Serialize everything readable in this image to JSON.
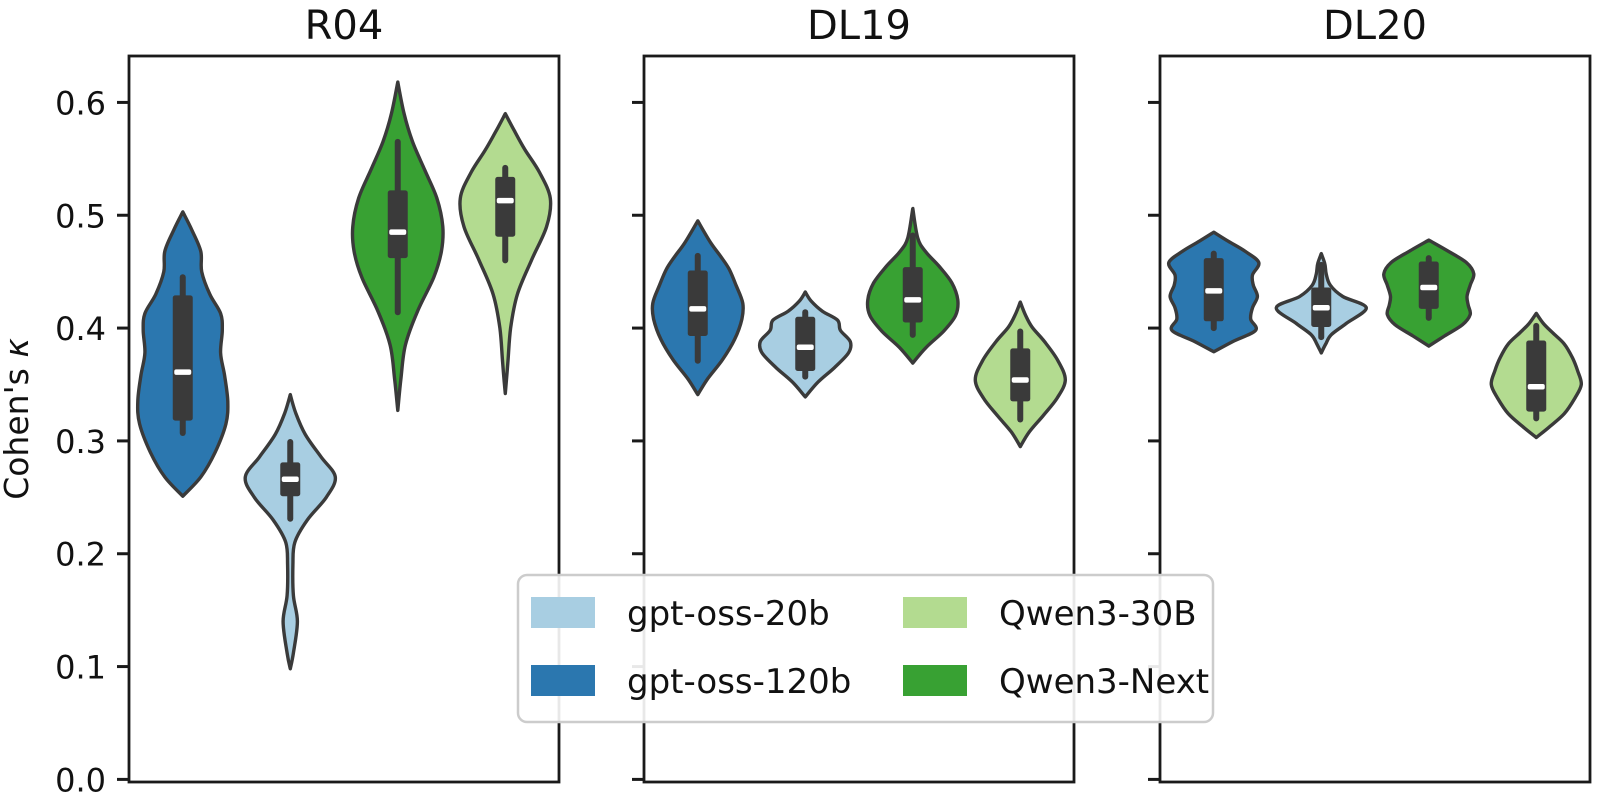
{
  "figure": {
    "background": "#ffffff",
    "ylabel_text": "Cohen's",
    "ylabel_symbol": "κ"
  },
  "chart_data": {
    "type": "violin",
    "title": "",
    "xlabel": "",
    "ylabel": "Cohen's κ",
    "ylim": [
      0.0,
      0.643
    ],
    "yticks": [
      0.0,
      0.1,
      0.2,
      0.3,
      0.4,
      0.5,
      0.6
    ],
    "ytick_labels": [
      "0.0",
      "0.1",
      "0.2",
      "0.3",
      "0.4",
      "0.5",
      "0.6"
    ],
    "grid": false,
    "legend_position": "lower-center",
    "colors": {
      "violin_edge": "#3a3a3a",
      "inner_box": "#3a3a3a",
      "median_marker": "#ffffff",
      "spine": "#1a1a1a",
      "legend_border": "#cccccc"
    },
    "legend": {
      "entries": [
        {
          "label": "gpt-oss-20b",
          "color": "#a8cee2"
        },
        {
          "label": "gpt-oss-120b",
          "color": "#2b77af"
        },
        {
          "label": "Qwen3-30B",
          "color": "#b3db90"
        },
        {
          "label": "Qwen3-Next",
          "color": "#38a133"
        }
      ]
    },
    "panels": [
      {
        "title": "R04",
        "violins": [
          {
            "series": "gpt-oss-120b",
            "color": "#2b77af",
            "stats": {
              "min": 0.251,
              "whisker_low": 0.307,
              "q1": 0.318,
              "median": 0.361,
              "q3": 0.429,
              "whisker_high": 0.445,
              "max": 0.503
            },
            "profile": [
              [
                0.251,
                0
              ],
              [
                0.268,
                0.4
              ],
              [
                0.29,
                0.72
              ],
              [
                0.315,
                0.96
              ],
              [
                0.335,
                1.0
              ],
              [
                0.358,
                0.93
              ],
              [
                0.378,
                0.84
              ],
              [
                0.398,
                0.88
              ],
              [
                0.413,
                0.84
              ],
              [
                0.43,
                0.6
              ],
              [
                0.45,
                0.42
              ],
              [
                0.468,
                0.4
              ],
              [
                0.487,
                0.2
              ],
              [
                0.503,
                0
              ]
            ]
          },
          {
            "series": "gpt-oss-20b",
            "color": "#a8cee2",
            "stats": {
              "min": 0.098,
              "whisker_low": 0.231,
              "q1": 0.251,
              "median": 0.266,
              "q3": 0.281,
              "whisker_high": 0.299,
              "max": 0.341
            },
            "profile": [
              [
                0.098,
                0
              ],
              [
                0.112,
                0.07
              ],
              [
                0.14,
                0.16
              ],
              [
                0.163,
                0.07
              ],
              [
                0.19,
                0.06
              ],
              [
                0.21,
                0.1
              ],
              [
                0.23,
                0.38
              ],
              [
                0.25,
                0.8
              ],
              [
                0.268,
                1.0
              ],
              [
                0.286,
                0.68
              ],
              [
                0.306,
                0.33
              ],
              [
                0.325,
                0.12
              ],
              [
                0.341,
                0
              ]
            ]
          },
          {
            "series": "Qwen3-Next",
            "color": "#38a133",
            "stats": {
              "min": 0.327,
              "whisker_low": 0.414,
              "q1": 0.462,
              "median": 0.485,
              "q3": 0.522,
              "whisker_high": 0.565,
              "max": 0.618
            },
            "profile": [
              [
                0.327,
                0
              ],
              [
                0.355,
                0.07
              ],
              [
                0.385,
                0.17
              ],
              [
                0.415,
                0.44
              ],
              [
                0.445,
                0.8
              ],
              [
                0.468,
                0.97
              ],
              [
                0.49,
                1.0
              ],
              [
                0.515,
                0.87
              ],
              [
                0.54,
                0.6
              ],
              [
                0.565,
                0.33
              ],
              [
                0.59,
                0.14
              ],
              [
                0.618,
                0
              ]
            ]
          },
          {
            "series": "Qwen3-30B",
            "color": "#b3db90",
            "stats": {
              "min": 0.342,
              "whisker_low": 0.46,
              "q1": 0.481,
              "median": 0.513,
              "q3": 0.534,
              "whisker_high": 0.542,
              "max": 0.59
            },
            "profile": [
              [
                0.342,
                0
              ],
              [
                0.37,
                0.06
              ],
              [
                0.4,
                0.12
              ],
              [
                0.43,
                0.27
              ],
              [
                0.46,
                0.58
              ],
              [
                0.49,
                0.92
              ],
              [
                0.515,
                1.0
              ],
              [
                0.538,
                0.76
              ],
              [
                0.558,
                0.44
              ],
              [
                0.575,
                0.2
              ],
              [
                0.59,
                0
              ]
            ]
          }
        ]
      },
      {
        "title": "DL19",
        "violins": [
          {
            "series": "gpt-oss-120b",
            "color": "#2b77af",
            "stats": {
              "min": 0.341,
              "whisker_low": 0.371,
              "q1": 0.393,
              "median": 0.417,
              "q3": 0.451,
              "whisker_high": 0.464,
              "max": 0.495
            },
            "profile": [
              [
                0.341,
                0
              ],
              [
                0.355,
                0.22
              ],
              [
                0.372,
                0.55
              ],
              [
                0.39,
                0.82
              ],
              [
                0.408,
                0.98
              ],
              [
                0.422,
                1.0
              ],
              [
                0.438,
                0.85
              ],
              [
                0.452,
                0.7
              ],
              [
                0.463,
                0.52
              ],
              [
                0.476,
                0.28
              ],
              [
                0.495,
                0
              ]
            ]
          },
          {
            "series": "gpt-oss-20b",
            "color": "#a8cee2",
            "stats": {
              "min": 0.339,
              "whisker_low": 0.357,
              "q1": 0.362,
              "median": 0.383,
              "q3": 0.41,
              "whisker_high": 0.414,
              "max": 0.432
            },
            "profile": [
              [
                0.339,
                0
              ],
              [
                0.352,
                0.28
              ],
              [
                0.365,
                0.65
              ],
              [
                0.378,
                0.96
              ],
              [
                0.388,
                1.0
              ],
              [
                0.398,
                0.78
              ],
              [
                0.407,
                0.72
              ],
              [
                0.415,
                0.38
              ],
              [
                0.424,
                0.13
              ],
              [
                0.432,
                0
              ]
            ]
          },
          {
            "series": "Qwen3-Next",
            "color": "#38a133",
            "stats": {
              "min": 0.369,
              "whisker_low": 0.394,
              "q1": 0.405,
              "median": 0.425,
              "q3": 0.454,
              "whisker_high": 0.482,
              "max": 0.506
            },
            "profile": [
              [
                0.369,
                0
              ],
              [
                0.383,
                0.3
              ],
              [
                0.397,
                0.68
              ],
              [
                0.411,
                0.95
              ],
              [
                0.425,
                1.0
              ],
              [
                0.44,
                0.87
              ],
              [
                0.455,
                0.58
              ],
              [
                0.468,
                0.28
              ],
              [
                0.48,
                0.11
              ],
              [
                0.506,
                0
              ]
            ]
          },
          {
            "series": "Qwen3-30B",
            "color": "#b3db90",
            "stats": {
              "min": 0.295,
              "whisker_low": 0.319,
              "q1": 0.335,
              "median": 0.354,
              "q3": 0.382,
              "whisker_high": 0.397,
              "max": 0.423
            },
            "profile": [
              [
                0.295,
                0
              ],
              [
                0.308,
                0.2
              ],
              [
                0.322,
                0.5
              ],
              [
                0.338,
                0.82
              ],
              [
                0.354,
                1.0
              ],
              [
                0.371,
                0.84
              ],
              [
                0.388,
                0.54
              ],
              [
                0.401,
                0.26
              ],
              [
                0.412,
                0.11
              ],
              [
                0.423,
                0
              ]
            ]
          }
        ]
      },
      {
        "title": "DL20",
        "violins": [
          {
            "series": "gpt-oss-120b",
            "color": "#2b77af",
            "stats": {
              "min": 0.379,
              "whisker_low": 0.4,
              "q1": 0.406,
              "median": 0.433,
              "q3": 0.462,
              "whisker_high": 0.466,
              "max": 0.485
            },
            "profile": [
              [
                0.379,
                0
              ],
              [
                0.388,
                0.42
              ],
              [
                0.398,
                0.93
              ],
              [
                0.408,
                0.82
              ],
              [
                0.418,
                0.86
              ],
              [
                0.428,
                0.97
              ],
              [
                0.438,
                0.88
              ],
              [
                0.447,
                0.86
              ],
              [
                0.458,
                1.0
              ],
              [
                0.468,
                0.7
              ],
              [
                0.477,
                0.32
              ],
              [
                0.485,
                0
              ]
            ]
          },
          {
            "series": "gpt-oss-20b",
            "color": "#a8cee2",
            "stats": {
              "min": 0.378,
              "whisker_low": 0.392,
              "q1": 0.401,
              "median": 0.418,
              "q3": 0.436,
              "whisker_high": 0.456,
              "max": 0.466
            },
            "profile": [
              [
                0.378,
                0
              ],
              [
                0.386,
                0.1
              ],
              [
                0.394,
                0.22
              ],
              [
                0.404,
                0.55
              ],
              [
                0.418,
                1.0
              ],
              [
                0.428,
                0.48
              ],
              [
                0.438,
                0.2
              ],
              [
                0.448,
                0.11
              ],
              [
                0.457,
                0.08
              ],
              [
                0.466,
                0
              ]
            ]
          },
          {
            "series": "Qwen3-Next",
            "color": "#38a133",
            "stats": {
              "min": 0.384,
              "whisker_low": 0.409,
              "q1": 0.417,
              "median": 0.436,
              "q3": 0.459,
              "whisker_high": 0.462,
              "max": 0.478
            },
            "profile": [
              [
                0.384,
                0
              ],
              [
                0.393,
                0.35
              ],
              [
                0.403,
                0.75
              ],
              [
                0.412,
                0.92
              ],
              [
                0.42,
                0.88
              ],
              [
                0.428,
                0.85
              ],
              [
                0.438,
                0.92
              ],
              [
                0.448,
                1.0
              ],
              [
                0.458,
                0.84
              ],
              [
                0.468,
                0.44
              ],
              [
                0.478,
                0
              ]
            ]
          },
          {
            "series": "Qwen3-30B",
            "color": "#b3db90",
            "stats": {
              "min": 0.303,
              "whisker_low": 0.32,
              "q1": 0.326,
              "median": 0.348,
              "q3": 0.389,
              "whisker_high": 0.402,
              "max": 0.413
            },
            "profile": [
              [
                0.303,
                0
              ],
              [
                0.312,
                0.28
              ],
              [
                0.324,
                0.62
              ],
              [
                0.338,
                0.86
              ],
              [
                0.35,
                1.0
              ],
              [
                0.362,
                0.92
              ],
              [
                0.374,
                0.8
              ],
              [
                0.386,
                0.62
              ],
              [
                0.396,
                0.36
              ],
              [
                0.404,
                0.16
              ],
              [
                0.413,
                0
              ]
            ]
          }
        ]
      }
    ]
  }
}
